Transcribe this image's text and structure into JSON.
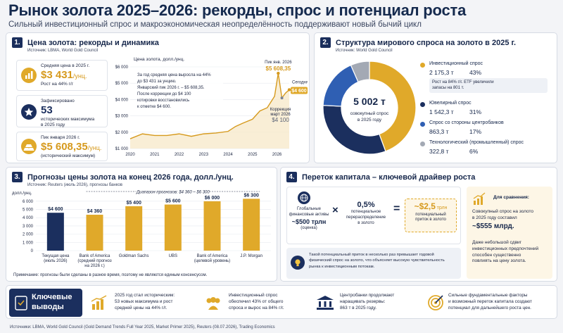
{
  "header": {
    "title": "Рынок золота 2025–2026: рекорды, спрос и потенциал роста",
    "subtitle": "Сильный инвестиционный спрос и макроэкономическая неопределённость поддерживают новый бычий цикл"
  },
  "panel1": {
    "num": "1.",
    "title": "Цена золота: рекорды и динамика",
    "source": "Источник: LBMA, World Gold Council",
    "chart_label": "Цена золота, долл./унц.",
    "cards": [
      {
        "l1": "Средняя цена в 2025 г.",
        "big": "$3 431",
        "unit": "/унц.",
        "l3": "Рост на 44% г/г"
      },
      {
        "l1": "Зафиксировано",
        "big": "53",
        "unit": "",
        "l3": "исторических максимума",
        "l4": "в 2025 году"
      },
      {
        "l1": "Пик января 2026 г.",
        "big": "$5 608,35",
        "unit": "/унц.",
        "l3": "(исторический максимум)"
      }
    ],
    "note": [
      "За год средняя цена выросла на 44%",
      "до $3 431 за унцию.",
      "Январский пик 2026 г. – $5 608,35.",
      "После коррекции до $4 100",
      "котировки восстановились",
      "к отметке $4 600."
    ],
    "peak_label": "Пик янв. 2026",
    "peak_value": "$5 608,35",
    "corr_label1": "Коррекция",
    "corr_label2": "март 2026",
    "corr_value": "$4 100",
    "today_label": "Сегодня",
    "today_value": "$4 600"
  },
  "chart_data": [
    {
      "type": "line",
      "title": "Цена золота, долл./унц.",
      "x": [
        2020,
        2020.5,
        2021,
        2021.5,
        2022,
        2022.5,
        2023,
        2023.5,
        2024,
        2024.3,
        2024.6,
        2025,
        2025.3,
        2025.6,
        2025.9,
        2026.05,
        2026.2,
        2026.35,
        2026.5
      ],
      "values": [
        1600,
        1900,
        1800,
        1800,
        1900,
        1750,
        1900,
        1950,
        2050,
        2350,
        2550,
        2800,
        3300,
        3500,
        4200,
        5608.35,
        4100,
        4400,
        4600
      ],
      "xticks": [
        "2020",
        "2021",
        "2022",
        "2023",
        "2024",
        "2025",
        "2026"
      ],
      "yticks": [
        "$1 000",
        "$2 000",
        "$3 000",
        "$4 000",
        "$5 000",
        "$6 000"
      ],
      "ylim": [
        1000,
        6000
      ],
      "grid": true
    },
    {
      "type": "pie",
      "title": "Структура мирового спроса на золото в 2025 г.",
      "total": "5 002 т",
      "total_caption": [
        "совокупный спрос",
        "в 2025 году"
      ],
      "labels": [
        "Инвестиционный спрос",
        "Ювелирный спрос",
        "Спрос со стороны центробанков",
        "Технологический (промышленный) спрос"
      ],
      "values": [
        2175.3,
        1542.3,
        863.3,
        322.8
      ],
      "value_labels": [
        "2 175,3 т",
        "1 542,3 т",
        "863,3 т",
        "322,8 т"
      ],
      "percents": [
        "43%",
        "31%",
        "17%",
        "6%"
      ],
      "colors": [
        "#e0a92a",
        "#1b2f5e",
        "#2f5fb3",
        "#a3a9b4"
      ]
    },
    {
      "type": "bar",
      "title": "Прогнозы цены золота на конец 2026 года, долл./унц.",
      "ylabel": "долл./унц.",
      "categories": [
        "Текущая цена (июль 2026)",
        "Bank of America (средний прогноз на 2026 г.)",
        "Goldman Sachs",
        "UBS",
        "Bank of America (целевой уровень)",
        "J.P. Morgan"
      ],
      "values": [
        4600,
        4360,
        5400,
        5600,
        6000,
        6300
      ],
      "value_labels": [
        "$4 600",
        "$4 360",
        "$5 400",
        "$5 600",
        "$6 000",
        "$6 300"
      ],
      "yticks": [
        "0",
        "1 000",
        "2 000",
        "3 000",
        "4 000",
        "5 000",
        "6 000"
      ],
      "ylim": [
        0,
        6500
      ],
      "colors": [
        "#1b2f5e",
        "#e0a92a",
        "#e0a92a",
        "#e0a92a",
        "#e0a92a",
        "#e0a92a"
      ]
    }
  ],
  "panel2": {
    "num": "2.",
    "title": "Структура мирового спроса на золото в 2025 г.",
    "source": "Источник: World Gold Council",
    "invest_note": [
      "Рост на 84% г/г. ETF увеличили",
      "запасы на 801 т."
    ]
  },
  "panel3": {
    "num": "3.",
    "title": "Прогнозы цены золота на конец 2026 года, долл./унц.",
    "source": "Источник: Reuters (июль 2026), прогнозы банков",
    "range_label": "Диапазон прогнозов: $4 360 – $6 300",
    "xlabels": [
      [
        "Текущая цена",
        "(июль 2026)"
      ],
      [
        "Bank of America",
        "(средний прогноз",
        "на 2026 г.)"
      ],
      [
        "Goldman Sachs"
      ],
      [
        "UBS"
      ],
      [
        "Bank of America",
        "(целевой уровень)"
      ],
      [
        "J.P. Morgan"
      ]
    ],
    "note": "Примечание: прогнозы были сделаны в разное время, поэтому не являются единым консенсусом."
  },
  "panel4": {
    "num": "4.",
    "title": "Переток капитала – ключевой драйвер роста",
    "assets_caption": [
      "Глобальные",
      "финансовые активы"
    ],
    "assets_value": "~$500 трлн",
    "assets_note": "(оценка)",
    "op1": "×",
    "share_value": "0,5%",
    "share_caption": [
      "потенциальное",
      "перераспределение",
      "в золото"
    ],
    "op2": "=",
    "flow_value": "~$2,5",
    "flow_unit": "трлн",
    "flow_caption": [
      "потенциальный",
      "приток в золото"
    ],
    "cmp_title": "Для сравнения:",
    "cmp_text": [
      "Совокупный спрос на золото",
      "в 2025 году составил"
    ],
    "cmp_value": "~$555 млрд.",
    "cmp_note": [
      "Даже небольшой сдвиг",
      "инвестиционных предпочтений",
      "способен существенно",
      "повлиять на цену золота."
    ],
    "bulb_text": [
      "Такой потенциальный приток в несколько раз превышает годовой",
      "физический спрос на золото, что объясняет высокую чувствительность",
      "рынка к инвестиционным потокам."
    ]
  },
  "conclusions": {
    "title": [
      "Ключевые",
      "выводы"
    ],
    "items": [
      [
        "2025 год стал историческим:",
        "53 новых максимума и рост",
        "средней цены на 44% г/г."
      ],
      [
        "Инвестиционный спрос",
        "обеспечил 43% от общего",
        "спроса и вырос на 84% г/г."
      ],
      [
        "Центробанки продолжают",
        "наращивать резервы:",
        "863 т в 2025 году."
      ],
      [
        "Сильные фундаментальные факторы",
        "и возможный переток капитала создают",
        "потенциал для дальнейшего роста цен."
      ]
    ]
  },
  "footer": "Источники: LBMA, World Gold Council (Gold Demand Trends Full Year 2025, Market Primer 2025), Reuters (08.07.2026), Trading Economics"
}
